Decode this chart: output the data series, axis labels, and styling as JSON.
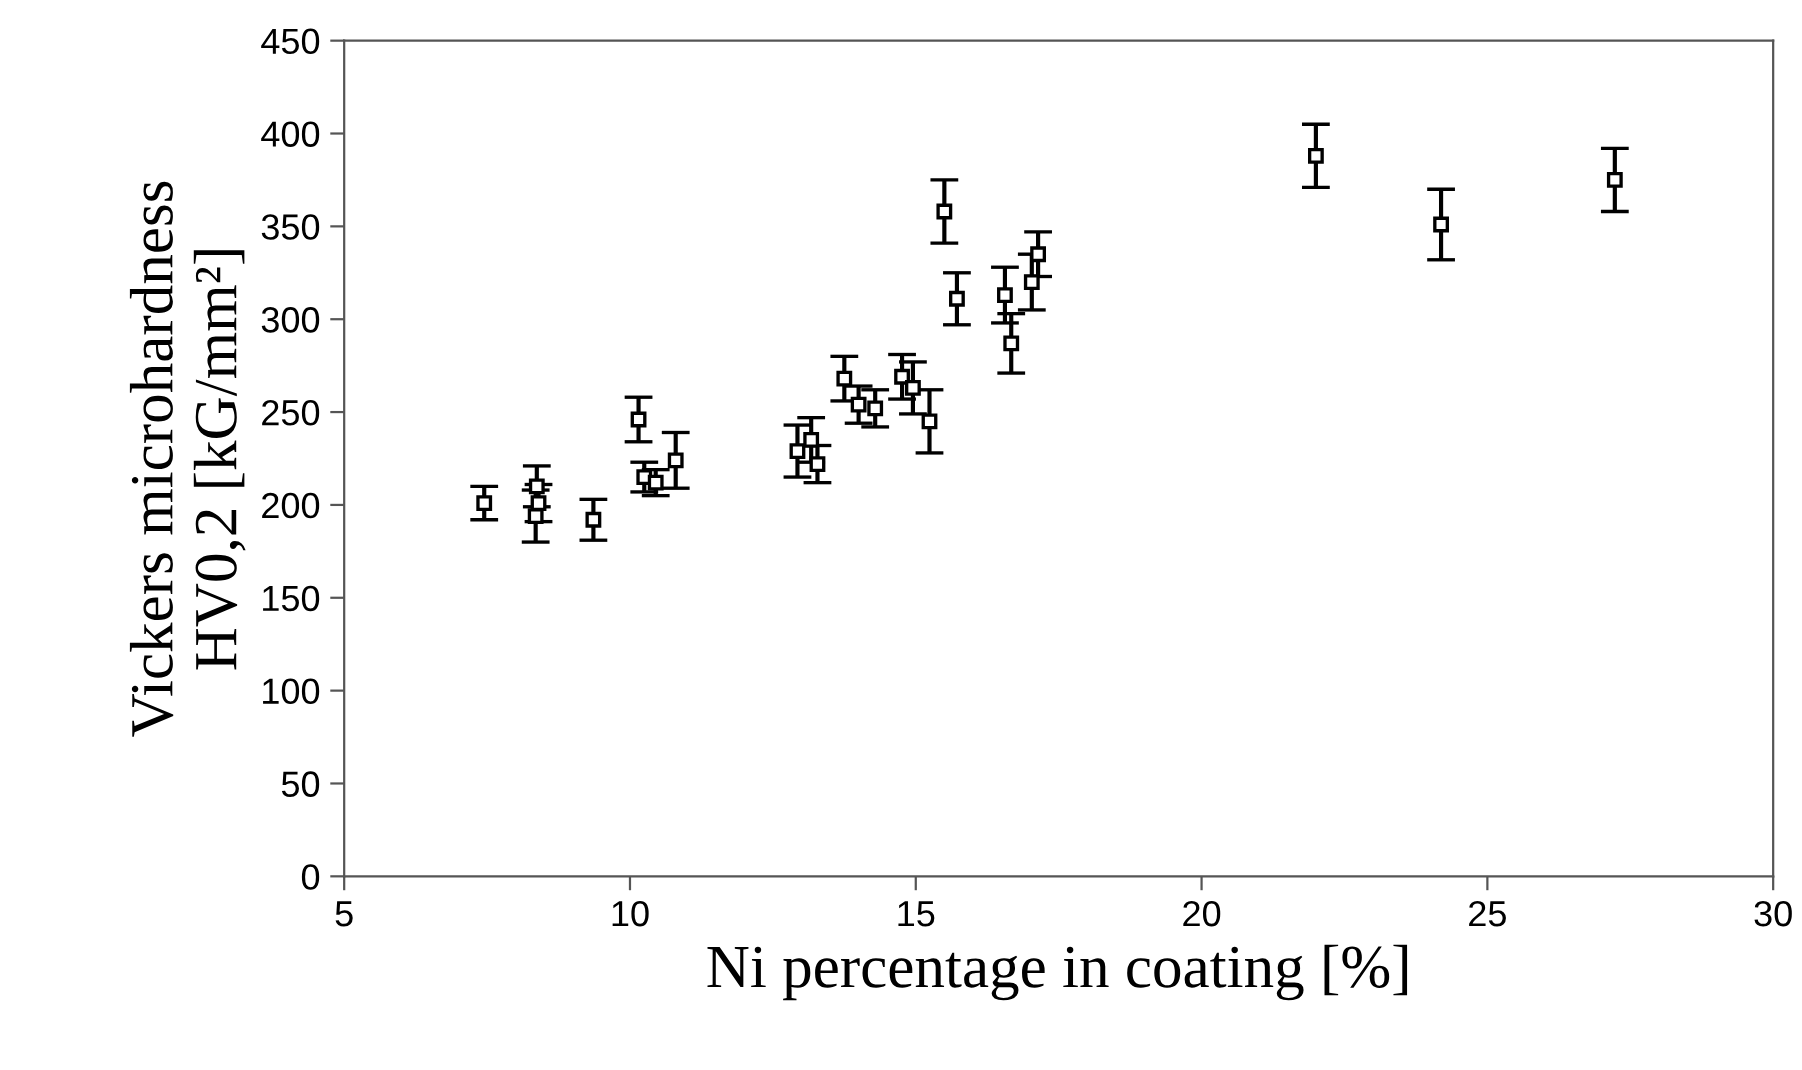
{
  "chart_data": {
    "type": "scatter",
    "xlabel": "Ni percentage in coating [%]",
    "ylabel": "Vickers microhardness\nHV0,2 [kG/mm²]",
    "x": [
      7.45,
      8.37,
      8.4,
      8.35,
      9.36,
      10.15,
      10.25,
      10.45,
      10.8,
      12.93,
      13.17,
      13.28,
      13.75,
      14.0,
      14.29,
      14.76,
      14.95,
      15.24,
      15.5,
      15.72,
      16.56,
      16.67,
      17.03,
      17.14,
      22.0,
      24.19,
      27.23
    ],
    "values": [
      201,
      210,
      201,
      194,
      192,
      246,
      215,
      212,
      224,
      229,
      235,
      222,
      268,
      254,
      252,
      269,
      263,
      245,
      358,
      311,
      313,
      287,
      320,
      335,
      388,
      351,
      375
    ],
    "errors": [
      9,
      11,
      10,
      14,
      11,
      12,
      8,
      7,
      15,
      14,
      12,
      10,
      12,
      10,
      10,
      12,
      14,
      17,
      17,
      14,
      15,
      16,
      15,
      12,
      17,
      19,
      17
    ],
    "color": "#000000",
    "marker": "square",
    "xlim": [
      5,
      30
    ],
    "xticks": [
      5,
      10,
      15,
      20,
      25,
      30
    ],
    "ylim": [
      0,
      450
    ],
    "yticks": [
      0,
      50,
      100,
      150,
      200,
      250,
      300,
      350,
      400,
      450
    ],
    "grid": false
  }
}
